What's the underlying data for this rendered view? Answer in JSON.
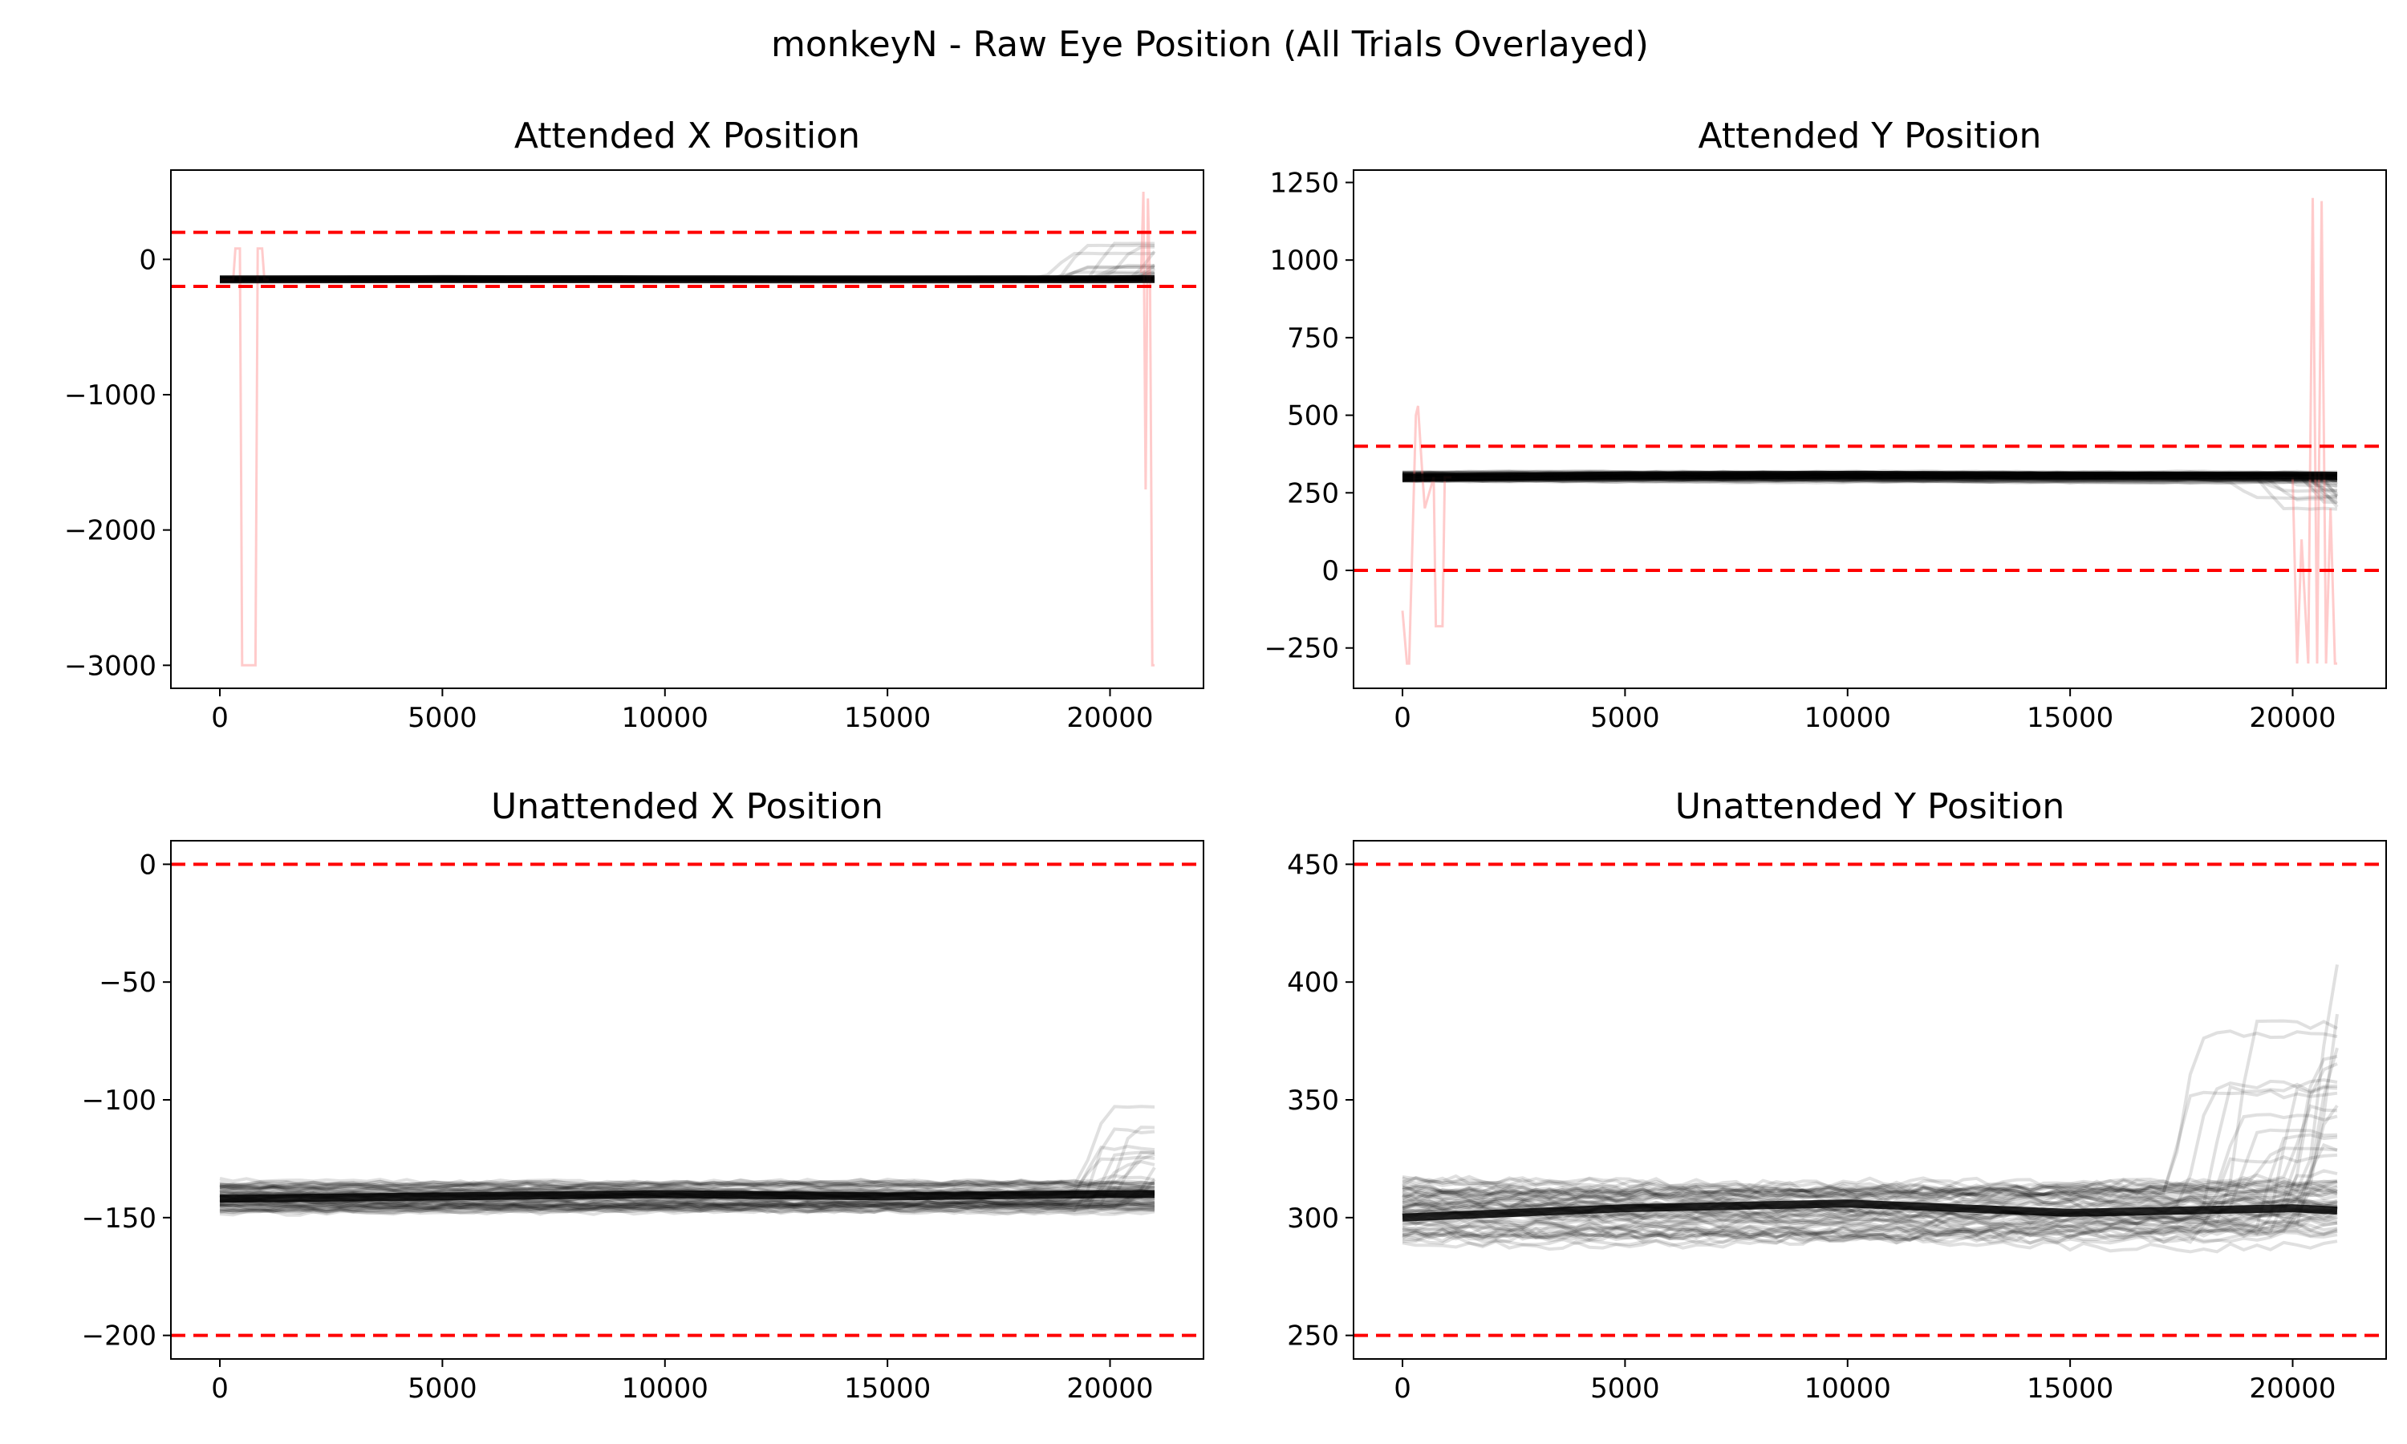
{
  "figure": {
    "suptitle": "monkeyN - Raw Eye Position (All Trials Overlayed)"
  },
  "colors": {
    "trace": "#000000",
    "outlier_trace": "#ff6b6b",
    "threshold": "#ff0000",
    "mean_line": "#8b0000"
  },
  "chart_data": [
    {
      "type": "line",
      "title": "Attended X Position",
      "xlabel": "",
      "ylabel": "",
      "xlim": [
        -1100,
        22100
      ],
      "ylim": [
        -3170,
        660
      ],
      "x_ticks": [
        0,
        5000,
        10000,
        15000,
        20000
      ],
      "x_tick_labels": [
        "0",
        "5000",
        "10000",
        "15000",
        "20000"
      ],
      "y_ticks": [
        0,
        -1000,
        -2000,
        -3000
      ],
      "y_tick_labels": [
        "0",
        "−1000",
        "−2000",
        "−3000"
      ],
      "thresholds": [
        200,
        -200
      ],
      "band": {
        "base": -148,
        "spread": 12,
        "drift": 5
      },
      "late_rise": {
        "start_x": 18500,
        "max_value": 150
      },
      "series": [
        {
          "role": "main",
          "x": [
            0,
            5000,
            10000,
            15000,
            20000,
            21000
          ],
          "values": [
            -148,
            -146,
            -147,
            -148,
            -147,
            -146
          ]
        },
        {
          "role": "outlier",
          "x": [
            0,
            300,
            350,
            450,
            500,
            800,
            850,
            950,
            1000,
            1100
          ],
          "values": [
            -150,
            -150,
            80,
            80,
            -3000,
            -3000,
            80,
            80,
            -150,
            -150
          ]
        },
        {
          "role": "outlier",
          "x": [
            20700,
            20750,
            20800,
            20850,
            20900,
            20950,
            21000
          ],
          "values": [
            -100,
            500,
            -1700,
            450,
            -200,
            -3000,
            -3000
          ]
        }
      ]
    },
    {
      "type": "line",
      "title": "Attended Y Position",
      "xlabel": "",
      "ylabel": "",
      "xlim": [
        -1100,
        22100
      ],
      "ylim": [
        -380,
        1290
      ],
      "x_ticks": [
        0,
        5000,
        10000,
        15000,
        20000
      ],
      "x_tick_labels": [
        "0",
        "5000",
        "10000",
        "15000",
        "20000"
      ],
      "y_ticks": [
        1250,
        1000,
        750,
        500,
        250,
        0,
        -250
      ],
      "y_tick_labels": [
        "1250",
        "1000",
        "750",
        "500",
        "250",
        "0",
        "−250"
      ],
      "thresholds": [
        400,
        0
      ],
      "band": {
        "base": 302,
        "spread": 14,
        "drift": 6
      },
      "late_rise": {
        "start_x": 18500,
        "max_value": 190
      },
      "series": [
        {
          "role": "main",
          "x": [
            0,
            5000,
            10000,
            15000,
            20000,
            21000
          ],
          "values": [
            298,
            306,
            308,
            305,
            306,
            305
          ]
        },
        {
          "role": "outlier",
          "x": [
            0,
            100,
            150,
            300,
            350,
            450,
            500,
            700,
            750,
            900,
            950,
            1100
          ],
          "values": [
            -130,
            -300,
            -300,
            500,
            530,
            300,
            200,
            300,
            -180,
            -180,
            300,
            300
          ]
        },
        {
          "role": "outlier",
          "x": [
            20000,
            20100,
            20200,
            20350,
            20450,
            20550,
            20650,
            20750,
            20850,
            20950,
            21000
          ],
          "values": [
            300,
            -300,
            100,
            -300,
            1200,
            -300,
            1190,
            -300,
            200,
            -300,
            -300
          ]
        }
      ]
    },
    {
      "type": "line",
      "title": "Unattended X Position",
      "xlabel": "",
      "ylabel": "",
      "xlim": [
        -1100,
        22100
      ],
      "ylim": [
        -210,
        10
      ],
      "x_ticks": [
        0,
        5000,
        10000,
        15000,
        20000
      ],
      "x_tick_labels": [
        "0",
        "5000",
        "10000",
        "15000",
        "20000"
      ],
      "y_ticks": [
        0,
        -50,
        -100,
        -150,
        -200
      ],
      "y_tick_labels": [
        "0",
        "−50",
        "−100",
        "−150",
        "−200"
      ],
      "thresholds": [
        0,
        -200
      ],
      "band": {
        "base": -141,
        "spread": 6,
        "drift": 1.5
      },
      "late_rise": {
        "start_x": 19000,
        "max_value": -106
      },
      "series": [
        {
          "role": "main",
          "x": [
            0,
            5000,
            10000,
            15000,
            20000,
            21000
          ],
          "values": [
            -142,
            -141,
            -140,
            -141,
            -140,
            -140
          ]
        }
      ]
    },
    {
      "type": "line",
      "title": "Unattended Y Position",
      "xlabel": "",
      "ylabel": "",
      "xlim": [
        -1100,
        22100
      ],
      "ylim": [
        240,
        460
      ],
      "x_ticks": [
        0,
        5000,
        10000,
        15000,
        20000
      ],
      "x_tick_labels": [
        "0",
        "5000",
        "10000",
        "15000",
        "20000"
      ],
      "y_ticks": [
        450,
        400,
        350,
        300,
        250
      ],
      "y_tick_labels": [
        "450",
        "400",
        "350",
        "300",
        "250"
      ],
      "thresholds": [
        450,
        250
      ],
      "band": {
        "base": 302,
        "spread": 12,
        "drift": 4
      },
      "late_rise": {
        "start_x": 17000,
        "max_value": 400
      },
      "series": [
        {
          "role": "main",
          "x": [
            0,
            5000,
            10000,
            15000,
            20000,
            21000
          ],
          "values": [
            300,
            304,
            306,
            302,
            304,
            303
          ]
        }
      ]
    }
  ]
}
